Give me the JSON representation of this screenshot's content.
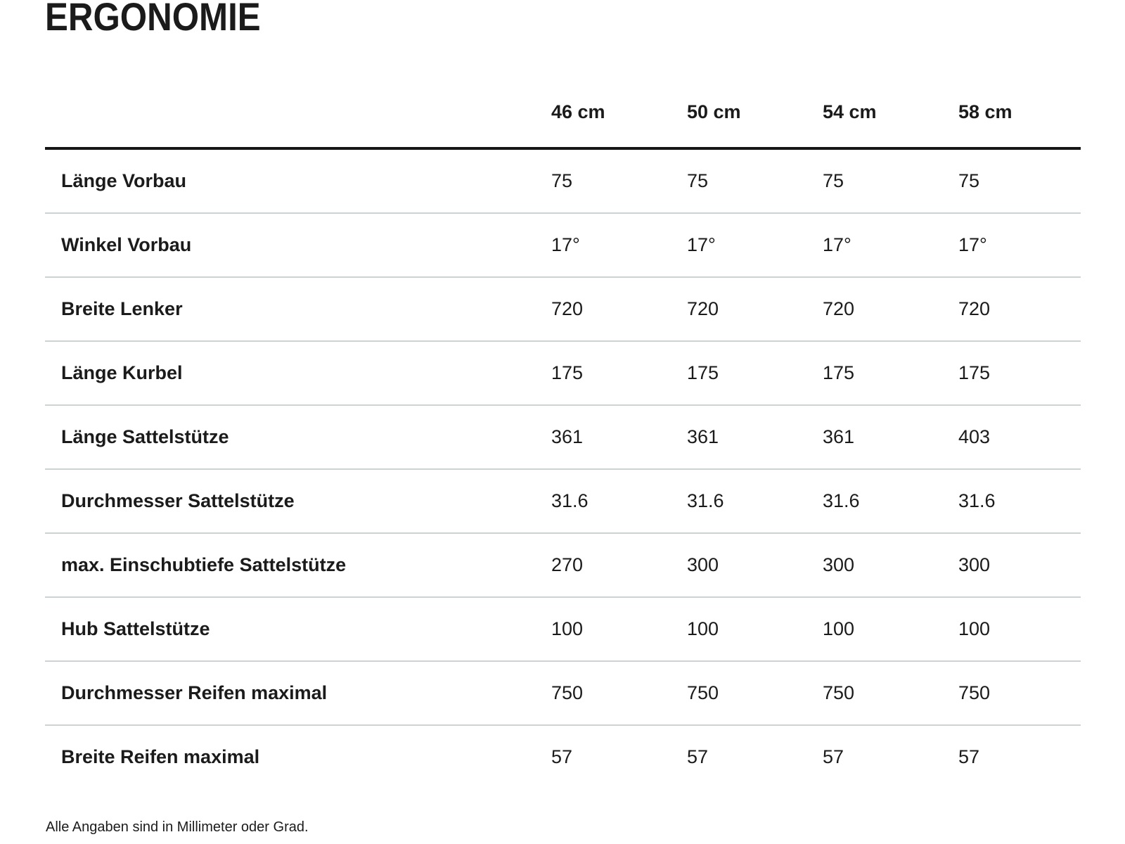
{
  "page": {
    "title": "ERGONOMIE",
    "footnote": "Alle Angaben sind in Millimeter oder Grad."
  },
  "table": {
    "columns": [
      "46 cm",
      "50 cm",
      "54 cm",
      "58 cm"
    ],
    "rows": [
      {
        "label": "Länge Vorbau",
        "values": [
          "75",
          "75",
          "75",
          "75"
        ]
      },
      {
        "label": "Winkel Vorbau",
        "values": [
          "17°",
          "17°",
          "17°",
          "17°"
        ]
      },
      {
        "label": "Breite Lenker",
        "values": [
          "720",
          "720",
          "720",
          "720"
        ]
      },
      {
        "label": "Länge Kurbel",
        "values": [
          "175",
          "175",
          "175",
          "175"
        ]
      },
      {
        "label": "Länge Sattelstütze",
        "values": [
          "361",
          "361",
          "361",
          "403"
        ]
      },
      {
        "label": "Durchmesser Sattelstütze",
        "values": [
          "31.6",
          "31.6",
          "31.6",
          "31.6"
        ]
      },
      {
        "label": "max. Einschubtiefe Sattelstütze",
        "values": [
          "270",
          "300",
          "300",
          "300"
        ]
      },
      {
        "label": "Hub Sattelstütze",
        "values": [
          "100",
          "100",
          "100",
          "100"
        ]
      },
      {
        "label": "Durchmesser Reifen maximal",
        "values": [
          "750",
          "750",
          "750",
          "750"
        ]
      },
      {
        "label": "Breite Reifen maximal",
        "values": [
          "57",
          "57",
          "57",
          "57"
        ]
      }
    ]
  },
  "colors": {
    "text": "#1b1b1b",
    "divider": "#cdd2d2",
    "header_rule": "#161616",
    "background": "#ffffff"
  }
}
